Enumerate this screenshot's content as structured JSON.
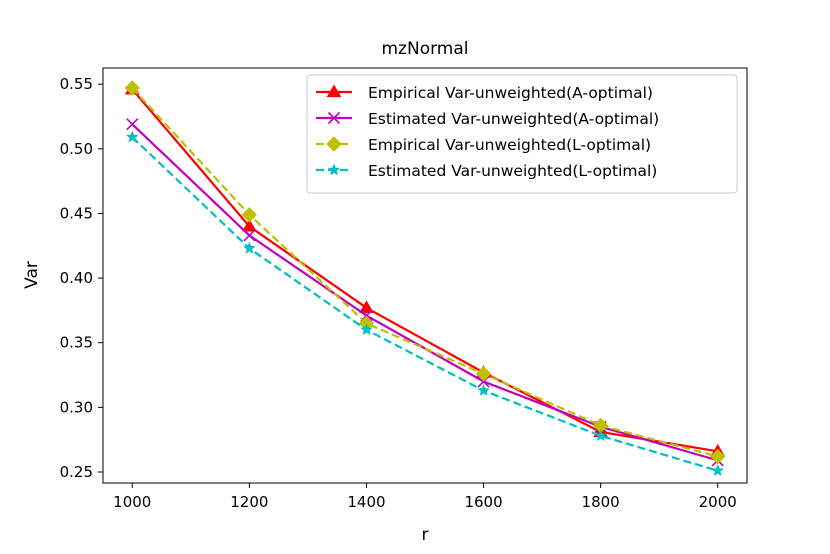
{
  "chart_data": {
    "type": "line",
    "title": "mzNormal",
    "xlabel": "r",
    "ylabel": "Var",
    "x": [
      1000,
      1200,
      1400,
      1600,
      1800,
      2000
    ],
    "xlim": [
      950,
      2050
    ],
    "ylim": [
      0.2415,
      0.5625
    ],
    "xticks": [
      1000,
      1200,
      1400,
      1600,
      1800,
      2000
    ],
    "xtick_labels": [
      "1000",
      "1200",
      "1400",
      "1600",
      "1800",
      "2000"
    ],
    "yticks": [
      0.25,
      0.3,
      0.35,
      0.4,
      0.45,
      0.5,
      0.55
    ],
    "ytick_labels": [
      "0.25",
      "0.30",
      "0.35",
      "0.40",
      "0.45",
      "0.50",
      "0.55"
    ],
    "grid": false,
    "legend_position": "top-right",
    "series": [
      {
        "name": "Empirical Var-unweighted(A-optimal)",
        "values": [
          0.546,
          0.44,
          0.377,
          0.327,
          0.281,
          0.266
        ],
        "color": "#ff0000",
        "marker": "triangle",
        "dash": "solid"
      },
      {
        "name": "Estimated Var-unweighted(A-optimal)",
        "values": [
          0.519,
          0.433,
          0.371,
          0.32,
          0.285,
          0.259
        ],
        "color": "#bf00bf",
        "marker": "x",
        "dash": "solid"
      },
      {
        "name": "Empirical Var-unweighted(L-optimal)",
        "values": [
          0.547,
          0.449,
          0.365,
          0.326,
          0.286,
          0.262
        ],
        "color": "#bfbf00",
        "marker": "diamond",
        "dash": "dashed"
      },
      {
        "name": "Estimated Var-unweighted(L-optimal)",
        "values": [
          0.509,
          0.423,
          0.36,
          0.313,
          0.278,
          0.251
        ],
        "color": "#00bfbf",
        "marker": "star",
        "dash": "dashed"
      }
    ]
  }
}
